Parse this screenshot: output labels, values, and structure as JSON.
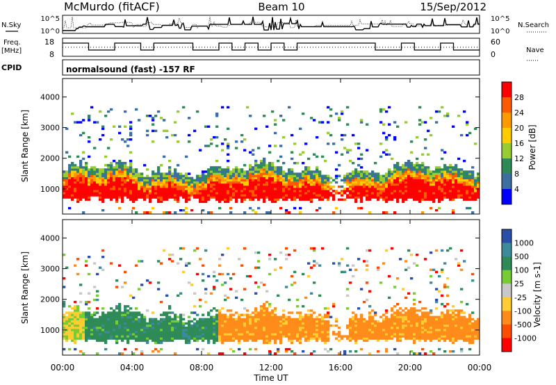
{
  "header": {
    "station": "McMurdo (fitACF)",
    "beam": "Beam 10",
    "date": "15/Sep/2012"
  },
  "top_strip": {
    "left_label": "N.Sky",
    "left_ticks": [
      "10^5",
      "10^0"
    ],
    "right_label": "N.Search",
    "right_ticks": [
      "10^5",
      "10^0"
    ]
  },
  "freq_strip": {
    "left_label_line1": "Freq.",
    "left_label_line2": "[MHz]",
    "left_ticks": [
      "18",
      "8"
    ],
    "right_label": "Nave",
    "right_ticks": [
      "60",
      "0"
    ]
  },
  "cpid": {
    "label": "CPID",
    "text": "normalsound (fast) -157 RF"
  },
  "chart_data": [
    {
      "type": "heatmap",
      "panel": "power",
      "xlabel": "",
      "ylabel": "Slant Range [km]",
      "x_ticks": [
        "00:00",
        "04:00",
        "08:00",
        "12:00",
        "16:00",
        "20:00",
        "00:00"
      ],
      "y_ticks": [
        1000,
        2000,
        3000,
        4000
      ],
      "ylim": [
        180,
        4600
      ],
      "colorbar": {
        "label": "Power [dB]",
        "ticks": [
          "28",
          "24",
          "20",
          "16",
          "12",
          "8",
          "4"
        ],
        "colors": [
          "#ff0000",
          "#ff5a00",
          "#ff9900",
          "#ffcc00",
          "#99cc33",
          "#2e8b57",
          "#3a6fa0",
          "#0000ff"
        ]
      },
      "description_bands": [
        {
          "range_km": [
            500,
            1000
          ],
          "level_db": 28
        },
        {
          "range_km": [
            1000,
            1250
          ],
          "level_db": 18
        },
        {
          "range_km": [
            1250,
            1550
          ],
          "level_db": 10
        }
      ]
    },
    {
      "type": "heatmap",
      "panel": "velocity",
      "xlabel": "Time UT",
      "ylabel": "Slant Range [km]",
      "x_ticks": [
        "00:00",
        "04:00",
        "08:00",
        "12:00",
        "16:00",
        "20:00",
        "00:00"
      ],
      "y_ticks": [
        1000,
        2000,
        3000,
        4000
      ],
      "ylim": [
        180,
        4600
      ],
      "colorbar": {
        "label": "Velocity [m s-1]",
        "ticks": [
          "1000",
          "500",
          "100",
          "25",
          "-25",
          "-100",
          "-500",
          "-1000"
        ],
        "colors": [
          "#2b4fa8",
          "#3d8a9a",
          "#2e8b57",
          "#77cc33",
          "#c8c8c8",
          "#ffcc33",
          "#ff8c1a",
          "#ff4d00",
          "#ff0000"
        ]
      }
    }
  ]
}
